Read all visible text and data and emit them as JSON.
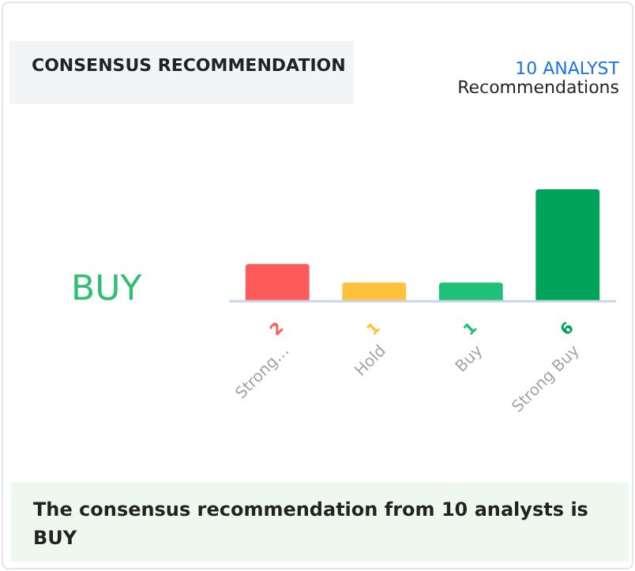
{
  "chart_data": {
    "type": "bar",
    "title": "CONSENSUS RECOMMENDATION",
    "categories": [
      "Strong…",
      "Hold",
      "Buy",
      "Strong Buy"
    ],
    "values": [
      2,
      1,
      1,
      6
    ],
    "colors": [
      "#ff5a5a",
      "#ffc23f",
      "#20c07a",
      "#00a35a"
    ],
    "data_labels": true,
    "annotations": [
      "10 ANALYST",
      "Recommendations",
      "BUY",
      "The consensus recommendation from 10 analysts is BUY"
    ]
  }
}
